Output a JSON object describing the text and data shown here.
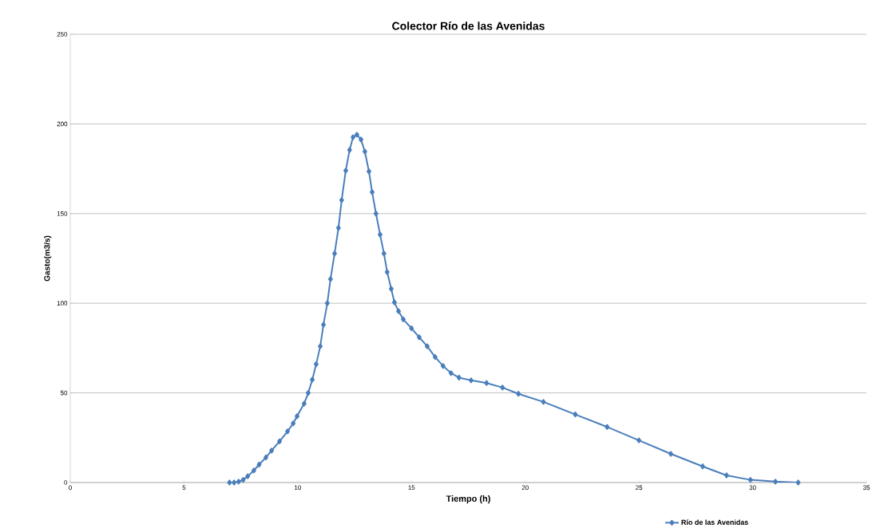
{
  "chart_data": {
    "type": "line",
    "title": "Colector Río de las Avenidas",
    "xlabel": "Tiempo (h)",
    "ylabel": "Gasto(m3/s)",
    "xlim": [
      0,
      35
    ],
    "xticks": [
      0,
      5,
      10,
      15,
      20,
      25,
      30,
      35
    ],
    "ylim": [
      0,
      250
    ],
    "yticks": [
      0,
      50,
      100,
      150,
      200,
      250
    ],
    "grid": "y",
    "legend": "bottom",
    "marker": "diamond",
    "line_style": "solid",
    "x": [
      7.0,
      7.2,
      7.4,
      7.6,
      7.8,
      8.07,
      8.3,
      8.6,
      8.85,
      9.2,
      9.55,
      9.8,
      9.97,
      10.28,
      10.46,
      10.64,
      10.81,
      10.99,
      11.13,
      11.3,
      11.44,
      11.62,
      11.79,
      11.93,
      12.11,
      12.28,
      12.43,
      12.6,
      12.78,
      12.95,
      13.13,
      13.27,
      13.44,
      13.62,
      13.79,
      13.93,
      14.11,
      14.25,
      14.43,
      14.64,
      15.0,
      15.34,
      15.69,
      16.04,
      16.39,
      16.74,
      17.09,
      17.62,
      18.3,
      19.0,
      19.7,
      20.8,
      22.2,
      23.6,
      25.0,
      26.4,
      27.8,
      28.85,
      29.9,
      31.0,
      32.0
    ],
    "series": [
      {
        "name": "Río de las Avenidas",
        "color": "#4a7ebb",
        "values": [
          0,
          0,
          0.5,
          1.5,
          3.5,
          6.7,
          10,
          14,
          17.8,
          23,
          28.5,
          33,
          37,
          44,
          50,
          57.4,
          66,
          76,
          88,
          100,
          113.5,
          127.7,
          142,
          157.5,
          174,
          185.5,
          192.6,
          194,
          191.3,
          184.6,
          173.5,
          162,
          150,
          138.3,
          127.7,
          117.4,
          108,
          100.5,
          95.6,
          91,
          86,
          81,
          76,
          70,
          65,
          61,
          58.5,
          57,
          55.5,
          53,
          49.5,
          45,
          38,
          31,
          23.5,
          16,
          9,
          4,
          1.5,
          0.5,
          0
        ]
      }
    ]
  }
}
